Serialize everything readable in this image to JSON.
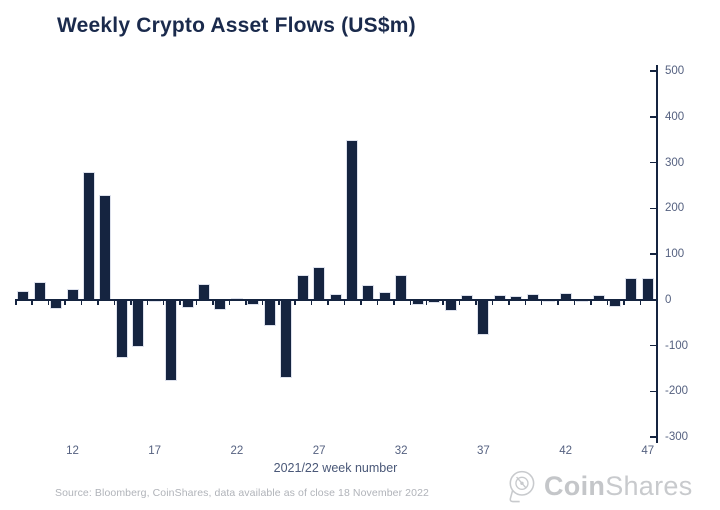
{
  "title": "Weekly Crypto Asset Flows (US$m)",
  "source_note": "Source: Bloomberg, CoinShares, data available as of close 18 November 2022",
  "logo": {
    "bold_part": "Coin",
    "regular_part": "Shares"
  },
  "colors": {
    "bar": "#152440",
    "axis": "#152440",
    "title": "#1a2a4c",
    "tick_label": "#556180",
    "axis_title": "#4a5878",
    "source": "#b0b3b9",
    "logo": "#c8cacd",
    "bar_border": "#dde1ec"
  },
  "chart_data": {
    "type": "bar",
    "title": "Weekly Crypto Asset Flows (US$m)",
    "xlabel": "2021/22 week number",
    "ylabel": "",
    "x": [
      9,
      10,
      11,
      12,
      13,
      14,
      15,
      16,
      17,
      18,
      19,
      20,
      21,
      22,
      23,
      24,
      25,
      26,
      27,
      28,
      29,
      30,
      31,
      32,
      33,
      34,
      35,
      36,
      37,
      38,
      39,
      40,
      41,
      42,
      43,
      44,
      45,
      46,
      47
    ],
    "values": [
      19,
      39,
      -21,
      23,
      280,
      230,
      -127,
      -104,
      -4,
      -177,
      -18,
      35,
      -22,
      4,
      -12,
      -58,
      -171,
      55,
      72,
      13,
      350,
      32,
      18,
      55,
      -12,
      -7,
      -25,
      10,
      -76,
      10,
      8,
      13,
      -4,
      15,
      -5,
      10,
      -16,
      47,
      47
    ],
    "xtick_labels": [
      12,
      17,
      22,
      27,
      32,
      37,
      42,
      47
    ],
    "ylim": [
      -300,
      500
    ],
    "ytick_interval": 100,
    "yaxis_side": "right",
    "grid": false,
    "bar_color": "#152440"
  }
}
